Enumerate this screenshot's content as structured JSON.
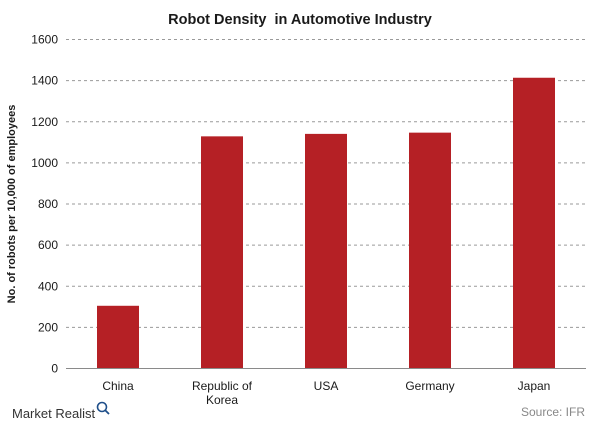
{
  "chart_data": {
    "type": "bar",
    "title": "Robot Density  in Automotive Industry",
    "ylabel": "No. of robots per 10,000 of employees",
    "xlabel": "",
    "categories": [
      [
        "China"
      ],
      [
        "Republic of",
        "Korea"
      ],
      [
        "USA"
      ],
      [
        "Germany"
      ],
      [
        "Japan"
      ]
    ],
    "values": [
      305,
      1129,
      1141,
      1147,
      1414
    ],
    "ylim": [
      0,
      1600
    ],
    "yticks": [
      "0",
      "200",
      "400",
      "600",
      "800",
      "1000",
      "1200",
      "1400",
      "1600"
    ],
    "bar_color": "#b52025",
    "grid": true,
    "legend": "none"
  },
  "footer": {
    "brand": "Market Realist",
    "source": "Source: IFR"
  }
}
